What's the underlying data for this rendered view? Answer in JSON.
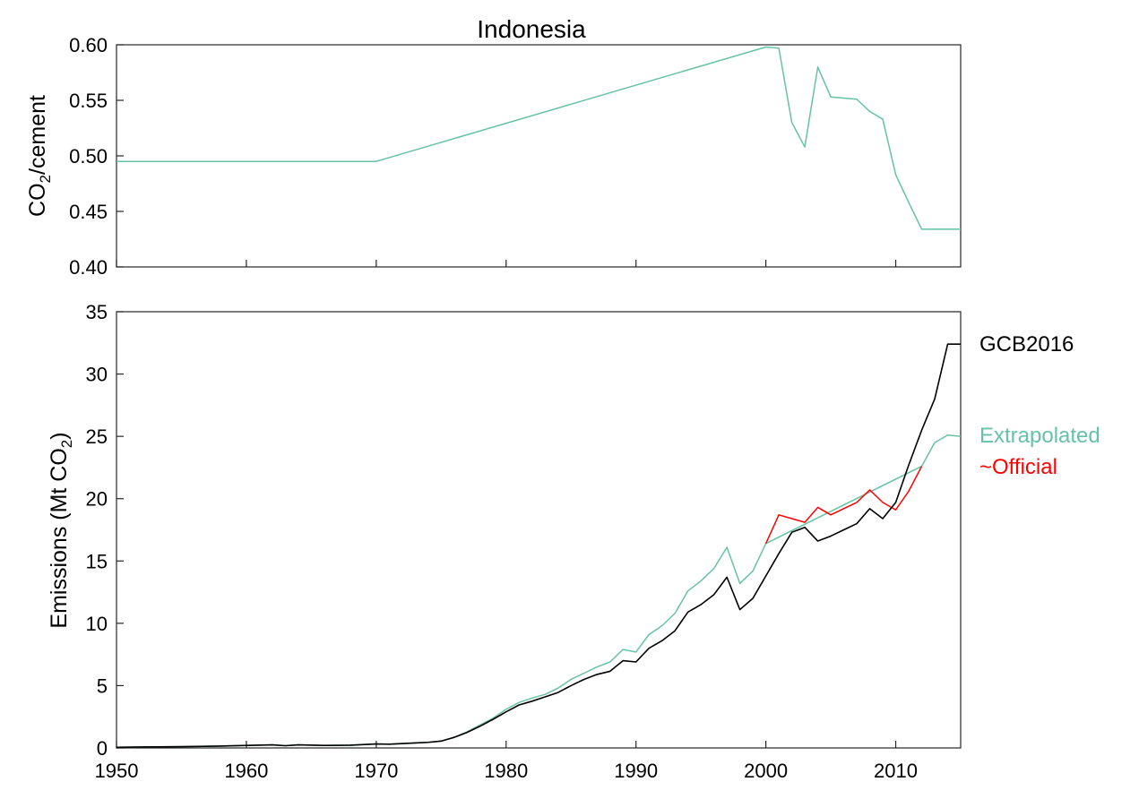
{
  "chart_data": [
    {
      "type": "line",
      "title": "Indonesia",
      "ylabel": {
        "main": "CO",
        "sub": "2",
        "rest": "/cement"
      },
      "xlim": [
        1950,
        2015
      ],
      "ylim": [
        0.4,
        0.6
      ],
      "yticks": [
        "0.40",
        "0.45",
        "0.50",
        "0.55",
        "0.60"
      ],
      "ytick_values": [
        0.4,
        0.45,
        0.5,
        0.55,
        0.6
      ],
      "grid": false,
      "series": [
        {
          "color": "#66c2a5",
          "points": [
            [
              1950,
              0.495
            ],
            [
              1970,
              0.495
            ],
            [
              2000,
              0.598
            ],
            [
              2001,
              0.597
            ],
            [
              2002,
              0.53
            ],
            [
              2003,
              0.508
            ],
            [
              2004,
              0.58
            ],
            [
              2005,
              0.553
            ],
            [
              2006,
              0.552
            ],
            [
              2007,
              0.551
            ],
            [
              2008,
              0.54
            ],
            [
              2009,
              0.533
            ],
            [
              2010,
              0.483
            ],
            [
              2011,
              0.458
            ],
            [
              2012,
              0.434
            ],
            [
              2013,
              0.434
            ],
            [
              2014,
              0.434
            ],
            [
              2015,
              0.434
            ]
          ]
        }
      ]
    },
    {
      "type": "line",
      "ylabel": {
        "main": "Emissions (Mt CO",
        "sub": "2",
        "rest": ")"
      },
      "xlim": [
        1950,
        2015
      ],
      "ylim": [
        0,
        35
      ],
      "xticks": [
        "1950",
        "1960",
        "1970",
        "1980",
        "1990",
        "2000",
        "2010"
      ],
      "xtick_values": [
        1950,
        1960,
        1970,
        1980,
        1990,
        2000,
        2010
      ],
      "yticks": [
        "0",
        "5",
        "10",
        "15",
        "20",
        "25",
        "30",
        "35"
      ],
      "ytick_values": [
        0,
        5,
        10,
        15,
        20,
        25,
        30,
        35
      ],
      "grid": false,
      "legend_placement": "right",
      "series": [
        {
          "name": "Extrapolated",
          "color": "#66c2a5",
          "points": [
            [
              1950,
              0.05
            ],
            [
              1952,
              0.08
            ],
            [
              1955,
              0.1
            ],
            [
              1958,
              0.15
            ],
            [
              1962,
              0.25
            ],
            [
              1963,
              0.18
            ],
            [
              1964,
              0.25
            ],
            [
              1966,
              0.2
            ],
            [
              1968,
              0.22
            ],
            [
              1970,
              0.32
            ],
            [
              1971,
              0.3
            ],
            [
              1973,
              0.4
            ],
            [
              1974,
              0.45
            ],
            [
              1975,
              0.55
            ],
            [
              1976,
              0.85
            ],
            [
              1977,
              1.3
            ],
            [
              1978,
              1.85
            ],
            [
              1979,
              2.4
            ],
            [
              1980,
              3.1
            ],
            [
              1981,
              3.65
            ],
            [
              1982,
              4.0
            ],
            [
              1983,
              4.3
            ],
            [
              1984,
              4.8
            ],
            [
              1985,
              5.5
            ],
            [
              1986,
              6.0
            ],
            [
              1987,
              6.5
            ],
            [
              1988,
              6.9
            ],
            [
              1989,
              7.9
            ],
            [
              1990,
              7.7
            ],
            [
              1991,
              9.1
            ],
            [
              1992,
              9.8
            ],
            [
              1993,
              10.8
            ],
            [
              1994,
              12.6
            ],
            [
              1995,
              13.4
            ],
            [
              1996,
              14.4
            ],
            [
              1997,
              16.1
            ],
            [
              1998,
              13.2
            ],
            [
              1999,
              14.2
            ],
            [
              2000,
              16.4
            ],
            [
              2012,
              22.6
            ],
            [
              2013,
              24.5
            ],
            [
              2014,
              25.1
            ],
            [
              2015,
              25.0
            ]
          ]
        },
        {
          "name": "~Official",
          "color": "#ff0000",
          "points": [
            [
              2000,
              16.4
            ],
            [
              2001,
              18.7
            ],
            [
              2002,
              18.4
            ],
            [
              2003,
              18.1
            ],
            [
              2004,
              19.3
            ],
            [
              2005,
              18.7
            ],
            [
              2006,
              19.2
            ],
            [
              2007,
              19.7
            ],
            [
              2008,
              20.7
            ],
            [
              2009,
              19.7
            ],
            [
              2010,
              19.1
            ],
            [
              2011,
              20.6
            ],
            [
              2012,
              22.6
            ]
          ]
        },
        {
          "name": "GCB2016",
          "color": "#000000",
          "points": [
            [
              1950,
              0.05
            ],
            [
              1952,
              0.08
            ],
            [
              1955,
              0.1
            ],
            [
              1958,
              0.15
            ],
            [
              1962,
              0.25
            ],
            [
              1963,
              0.18
            ],
            [
              1964,
              0.25
            ],
            [
              1966,
              0.2
            ],
            [
              1968,
              0.22
            ],
            [
              1970,
              0.32
            ],
            [
              1971,
              0.3
            ],
            [
              1973,
              0.4
            ],
            [
              1974,
              0.45
            ],
            [
              1975,
              0.55
            ],
            [
              1976,
              0.85
            ],
            [
              1977,
              1.25
            ],
            [
              1978,
              1.75
            ],
            [
              1979,
              2.3
            ],
            [
              1980,
              2.9
            ],
            [
              1981,
              3.45
            ],
            [
              1982,
              3.75
            ],
            [
              1983,
              4.1
            ],
            [
              1984,
              4.45
            ],
            [
              1985,
              5.0
            ],
            [
              1986,
              5.5
            ],
            [
              1987,
              5.9
            ],
            [
              1988,
              6.15
            ],
            [
              1989,
              7.0
            ],
            [
              1990,
              6.9
            ],
            [
              1991,
              8.0
            ],
            [
              1992,
              8.6
            ],
            [
              1993,
              9.4
            ],
            [
              1994,
              10.9
            ],
            [
              1995,
              11.5
            ],
            [
              1996,
              12.3
            ],
            [
              1997,
              13.7
            ],
            [
              1998,
              11.1
            ],
            [
              1999,
              12.0
            ],
            [
              2000,
              13.8
            ],
            [
              2001,
              15.6
            ],
            [
              2002,
              17.3
            ],
            [
              2003,
              17.7
            ],
            [
              2004,
              16.6
            ],
            [
              2005,
              17.0
            ],
            [
              2006,
              17.5
            ],
            [
              2007,
              18.0
            ],
            [
              2008,
              19.2
            ],
            [
              2009,
              18.4
            ],
            [
              2010,
              19.7
            ],
            [
              2011,
              22.7
            ],
            [
              2012,
              25.5
            ],
            [
              2013,
              28.0
            ],
            [
              2014,
              32.4
            ],
            [
              2015,
              32.4
            ]
          ]
        }
      ]
    }
  ]
}
